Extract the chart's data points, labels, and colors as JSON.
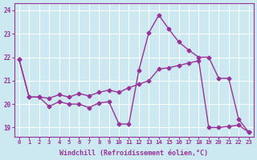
{
  "xlabel": "Windchill (Refroidissement éolien,°C)",
  "bg_color": "#cce8f0",
  "line_color": "#993399",
  "series1_y": [
    21.9,
    20.3,
    20.3,
    19.9,
    20.1,
    20.0,
    20.0,
    19.85,
    20.05,
    20.1,
    19.15,
    19.15,
    21.45,
    23.05,
    23.8,
    23.2,
    22.65,
    22.3,
    22.0,
    22.0,
    21.1,
    21.1,
    19.35,
    18.8
  ],
  "series2_y": [
    21.9,
    20.3,
    20.3,
    20.25,
    20.4,
    20.3,
    20.45,
    20.35,
    20.5,
    20.6,
    20.5,
    20.7,
    20.85,
    21.0,
    21.5,
    21.55,
    21.65,
    21.75,
    21.85,
    19.0,
    19.0,
    19.05,
    19.1,
    18.8
  ],
  "ylim": [
    18.6,
    24.3
  ],
  "yticks": [
    19,
    20,
    21,
    22,
    23,
    24
  ],
  "xticks": [
    0,
    1,
    2,
    3,
    4,
    5,
    6,
    7,
    8,
    9,
    10,
    11,
    12,
    13,
    14,
    15,
    16,
    17,
    18,
    19,
    20,
    21,
    22,
    23
  ],
  "marker": "D",
  "markersize": 2.5,
  "linewidth": 1.0
}
